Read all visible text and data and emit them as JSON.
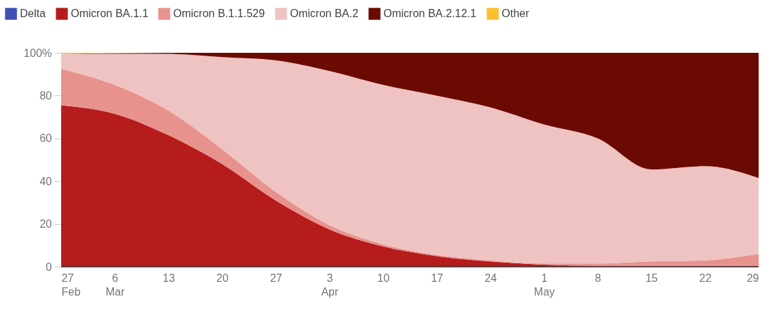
{
  "chart_data": {
    "type": "area",
    "stacked": true,
    "x": [
      "--02-27",
      "--03-06",
      "--03-13",
      "--03-20",
      "--03-27",
      "--04-03",
      "--04-10",
      "--04-17",
      "--04-24",
      "--05-01",
      "--05-08",
      "--05-15",
      "--05-22",
      "--05-29"
    ],
    "series": [
      {
        "name": "Delta",
        "color": "#3f51b5",
        "values": [
          null,
          null,
          null,
          null,
          null,
          null,
          null,
          null,
          null,
          null,
          null,
          null,
          null,
          null
        ]
      },
      {
        "name": "Omicron BA.1.1",
        "color": "#b71c1c",
        "values": [
          75.5,
          71.5,
          61.5,
          48,
          31,
          17.5,
          9.5,
          5,
          2.5,
          1,
          0.5,
          0.5,
          0.5,
          0.5
        ]
      },
      {
        "name": "Omicron B.1.1.529",
        "color": "#e8928e",
        "values": [
          17,
          13.5,
          11.5,
          7,
          4,
          2,
          1,
          0.5,
          0.5,
          0.5,
          1,
          2,
          2.5,
          5.5
        ]
      },
      {
        "name": "Omicron BA.2",
        "color": "#efc3c2",
        "values": [
          7,
          14.5,
          26.5,
          43,
          61.5,
          72,
          74.5,
          74.5,
          71.5,
          65,
          58.5,
          43,
          44,
          35.5
        ]
      },
      {
        "name": "Omicron BA.2.12.1",
        "color": "#6b0a02",
        "values": [
          0,
          0.3,
          0.5,
          2,
          3.5,
          8.5,
          15,
          20,
          25.5,
          33.5,
          40,
          54.5,
          53,
          58.5
        ]
      },
      {
        "name": "Other",
        "color": "#fbc02d",
        "values": [
          0.5,
          0.2,
          0,
          0,
          0,
          0,
          0,
          0,
          0,
          0,
          0,
          0,
          0,
          0
        ]
      }
    ],
    "xlim": [
      "--02-27",
      "--05-29"
    ],
    "xticks": [
      {
        "value": "--02-27",
        "label": "27 Feb"
      },
      {
        "value": "--03-06",
        "label": "6 Mar"
      },
      {
        "value": "--03-13",
        "label": "13"
      },
      {
        "value": "--03-20",
        "label": "20"
      },
      {
        "value": "--03-27",
        "label": "27"
      },
      {
        "value": "--04-03",
        "label": "3 Apr"
      },
      {
        "value": "--04-10",
        "label": "10"
      },
      {
        "value": "--04-17",
        "label": "17"
      },
      {
        "value": "--04-24",
        "label": "24"
      },
      {
        "value": "--05-01",
        "label": "1 May"
      },
      {
        "value": "--05-08",
        "label": "8"
      },
      {
        "value": "--05-15",
        "label": "15"
      },
      {
        "value": "--05-22",
        "label": "22"
      },
      {
        "value": "--05-29",
        "label": "29"
      }
    ],
    "ylim": [
      0,
      100
    ],
    "yticks": [
      0,
      20,
      40,
      60,
      80,
      {
        "value": 100,
        "label": "100%"
      }
    ],
    "legend": "top left",
    "grid": false
  }
}
